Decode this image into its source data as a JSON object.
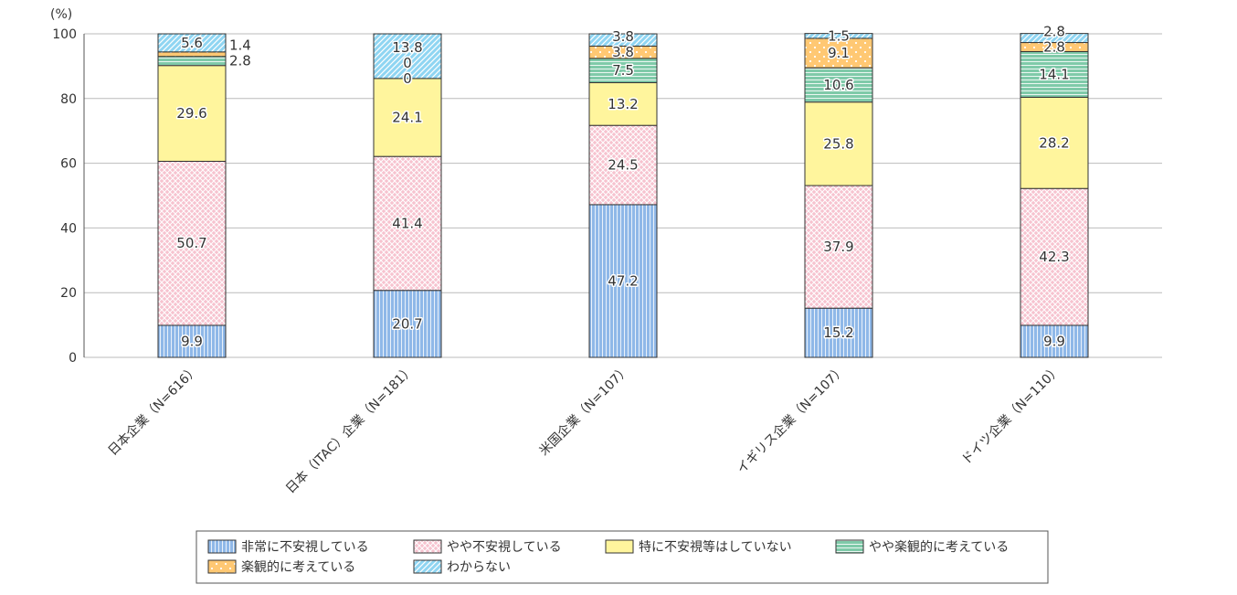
{
  "chart_data": {
    "type": "bar",
    "stacked": true,
    "unit_label": "(%)",
    "ylim": [
      0,
      100
    ],
    "yticks": [
      0,
      20,
      40,
      60,
      80,
      100
    ],
    "grid": true,
    "legend_position": "bottom",
    "categories": [
      "日本企業（N=616）",
      "日本（ITAC）企業（N=181）",
      "米国企業（N=107）",
      "イギリス企業（N=107）",
      "ドイツ企業（N=110）"
    ],
    "series": [
      {
        "name": "非常に不安視している",
        "color": "#8fb8e8",
        "pattern": "vertical",
        "values": [
          9.9,
          20.7,
          47.2,
          15.2,
          9.9
        ]
      },
      {
        "name": "やや不安視している",
        "color": "#f7c3cf",
        "pattern": "crosshatch",
        "values": [
          50.7,
          41.4,
          24.5,
          37.9,
          42.3
        ]
      },
      {
        "name": "特に不安視等はしていない",
        "color": "#fff59d",
        "pattern": "solid",
        "values": [
          29.6,
          24.1,
          13.2,
          25.8,
          28.2
        ]
      },
      {
        "name": "やや楽観的に考えている",
        "color": "#7fcaa9",
        "pattern": "horizontal",
        "values": [
          2.8,
          0,
          7.5,
          10.6,
          14.1
        ]
      },
      {
        "name": "楽観的に考えている",
        "color": "#ffc873",
        "pattern": "dots",
        "values": [
          1.4,
          0,
          3.8,
          9.1,
          2.8
        ]
      },
      {
        "name": "わからない",
        "color": "#8fd5f2",
        "pattern": "diagonal",
        "values": [
          5.6,
          13.8,
          3.8,
          1.5,
          2.8
        ]
      }
    ]
  }
}
